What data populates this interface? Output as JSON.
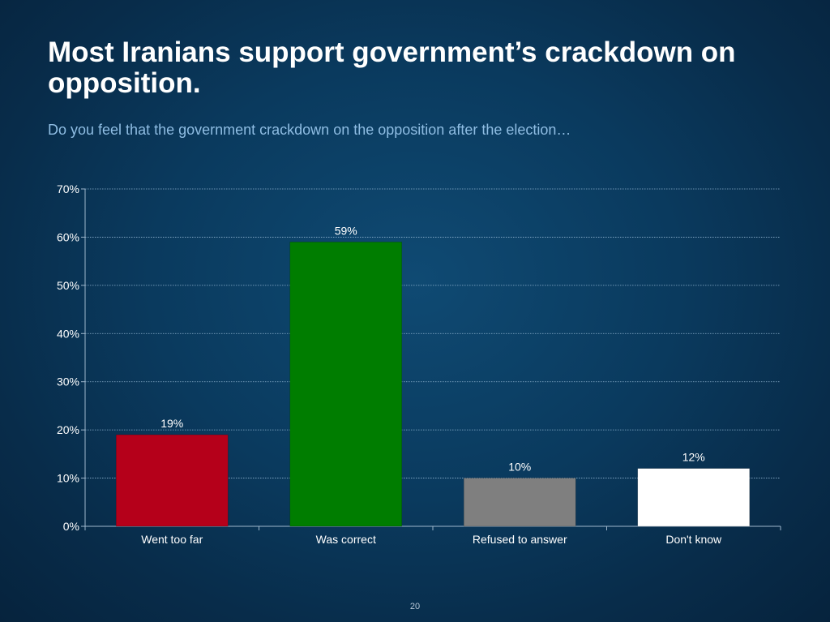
{
  "slide": {
    "title": "Most Iranians support government’s crackdown on opposition.",
    "subtitle": "Do you feel that the government crackdown on the opposition after the election…",
    "page_number": "20"
  },
  "chart_data": {
    "type": "bar",
    "categories": [
      "Went too far",
      "Was correct",
      "Refused to answer",
      "Don't know"
    ],
    "values": [
      19,
      59,
      10,
      12
    ],
    "data_labels": [
      "19%",
      "59%",
      "10%",
      "12%"
    ],
    "colors": [
      "#b5001a",
      "#007d00",
      "#7f7f7f",
      "#ffffff"
    ],
    "ylim": [
      0,
      70
    ],
    "yticks": [
      0,
      10,
      20,
      30,
      40,
      50,
      60,
      70
    ],
    "ytick_labels": [
      "0%",
      "10%",
      "20%",
      "30%",
      "40%",
      "50%",
      "60%",
      "70%"
    ],
    "grid": true,
    "legend": false
  }
}
